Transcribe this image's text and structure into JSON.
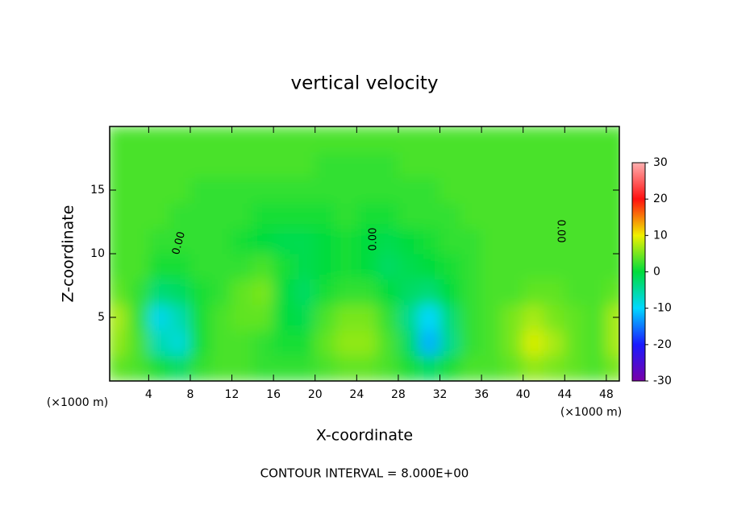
{
  "chart_data": {
    "type": "heatmap",
    "title": "vertical velocity",
    "x_label": "X-coordinate",
    "y_label": "Z-coordinate",
    "x_unit_label": "(×1000 m)",
    "y_unit_label": "(×1000 m)",
    "footer": "CONTOUR INTERVAL = 8.000E+00",
    "contour_labels": [
      "0.00",
      "0.00",
      "0.00"
    ],
    "x": [
      1,
      3,
      5,
      7,
      9,
      11,
      13,
      15,
      17,
      19,
      21,
      23,
      25,
      27,
      29,
      31,
      33,
      35,
      37,
      39,
      41,
      43,
      45,
      47,
      49
    ],
    "y": [
      1,
      3,
      5,
      7,
      9,
      11,
      13,
      15,
      17,
      19
    ],
    "z": [
      [
        4,
        3,
        1,
        -2,
        2,
        3,
        3,
        2,
        2,
        2,
        3,
        4,
        4,
        3,
        1,
        -2,
        1,
        3,
        3,
        4,
        6,
        5,
        4,
        3,
        5
      ],
      [
        6,
        3,
        -6,
        -8,
        1,
        3,
        3,
        2,
        1,
        1,
        4,
        6,
        6,
        3,
        -2,
        -12,
        -4,
        2,
        3,
        5,
        9,
        7,
        4,
        3,
        7
      ],
      [
        7,
        2,
        -9,
        -6,
        1,
        3,
        4,
        4,
        0,
        -1,
        3,
        5,
        5,
        2,
        -4,
        -10,
        -3,
        2,
        3,
        5,
        7,
        5,
        4,
        3,
        7
      ],
      [
        4,
        2,
        -3,
        -2,
        1,
        2,
        4,
        5,
        0,
        -2,
        1,
        2,
        2,
        0,
        -2,
        -3,
        0,
        2,
        3,
        3,
        4,
        4,
        3,
        3,
        4
      ],
      [
        3,
        3,
        1,
        1,
        2,
        2,
        2,
        3,
        1,
        -1,
        0,
        1,
        0,
        -2,
        -1,
        0,
        1,
        2,
        3,
        3,
        3,
        3,
        3,
        3,
        3
      ],
      [
        3,
        3,
        2,
        2,
        2,
        2,
        1,
        0,
        -1,
        -1,
        0,
        1,
        0,
        -1,
        0,
        1,
        2,
        2,
        3,
        3,
        3,
        3,
        3,
        3,
        3
      ],
      [
        3,
        3,
        3,
        2,
        2,
        2,
        2,
        1,
        1,
        1,
        1,
        2,
        1,
        1,
        2,
        2,
        2,
        3,
        3,
        3,
        3,
        3,
        3,
        3,
        3
      ],
      [
        3,
        3,
        3,
        3,
        2,
        2,
        2,
        2,
        2,
        2,
        2,
        2,
        2,
        2,
        2,
        2,
        3,
        3,
        3,
        3,
        3,
        3,
        3,
        3,
        3
      ],
      [
        3,
        3,
        3,
        3,
        3,
        3,
        3,
        3,
        3,
        3,
        2,
        2,
        2,
        2,
        3,
        3,
        3,
        3,
        3,
        3,
        3,
        3,
        3,
        3,
        3
      ],
      [
        3,
        3,
        3,
        3,
        3,
        3,
        3,
        3,
        3,
        3,
        3,
        3,
        3,
        3,
        3,
        3,
        3,
        3,
        3,
        3,
        3,
        3,
        3,
        3,
        3
      ]
    ],
    "xlim": [
      0.25,
      49.25
    ],
    "ylim": [
      0,
      20
    ],
    "xticks": [
      4,
      8,
      12,
      16,
      20,
      24,
      28,
      32,
      36,
      40,
      44,
      48
    ],
    "yticks": [
      5,
      10,
      15
    ],
    "clim": [
      -30,
      30
    ],
    "cticks": [
      30,
      20,
      10,
      0,
      -10,
      -20,
      -30
    ],
    "colorscale": [
      "#7a00a8",
      "#1a1aff",
      "#00d8ff",
      "#00dc3c",
      "#f0f000",
      "#ff1010",
      "#ffb0b0"
    ]
  }
}
